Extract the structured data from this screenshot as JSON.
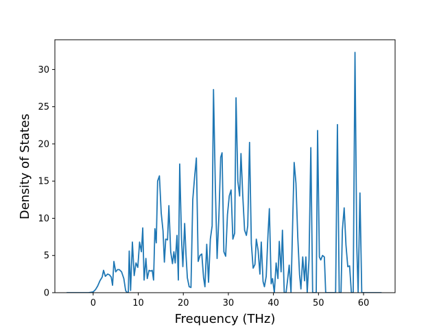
{
  "chart_data": {
    "type": "line",
    "xlabel": "Frequency (THz)",
    "ylabel": "Density of States",
    "xlim": [
      -8.5,
      67
    ],
    "ylim": [
      0,
      34
    ],
    "xticks": [
      0,
      10,
      20,
      30,
      40,
      50,
      60
    ],
    "yticks": [
      0,
      5,
      10,
      15,
      20,
      25,
      30
    ],
    "x_tick_labels": [
      "0",
      "10",
      "20",
      "30",
      "40",
      "50",
      "60"
    ],
    "y_tick_labels": [
      "0",
      "5",
      "10",
      "15",
      "20",
      "25",
      "30"
    ],
    "grid": false,
    "series": [
      {
        "color": "#1f77b4",
        "points": [
          [
            -5.9,
            0
          ],
          [
            -1.0,
            0
          ],
          [
            0,
            0.1
          ],
          [
            0.5,
            0.4
          ],
          [
            1.0,
            0.9
          ],
          [
            1.5,
            1.6
          ],
          [
            2.0,
            2.1
          ],
          [
            2.3,
            3.0
          ],
          [
            2.7,
            2.2
          ],
          [
            3.2,
            2.5
          ],
          [
            3.6,
            2.4
          ],
          [
            4.0,
            2.1
          ],
          [
            4.3,
            1.0
          ],
          [
            4.6,
            4.2
          ],
          [
            5.0,
            2.8
          ],
          [
            5.4,
            3.1
          ],
          [
            5.8,
            3.1
          ],
          [
            6.3,
            2.8
          ],
          [
            6.8,
            1.9
          ],
          [
            7.2,
            0.3
          ],
          [
            7.5,
            0
          ],
          [
            7.8,
            0.1
          ],
          [
            8.0,
            5.6
          ],
          [
            8.3,
            0.3
          ],
          [
            8.7,
            6.8
          ],
          [
            9.1,
            2.3
          ],
          [
            9.5,
            4.0
          ],
          [
            9.9,
            3.4
          ],
          [
            10.3,
            6.8
          ],
          [
            10.7,
            5.5
          ],
          [
            11.0,
            8.7
          ],
          [
            11.3,
            1.7
          ],
          [
            11.7,
            4.6
          ],
          [
            12.0,
            1.9
          ],
          [
            12.4,
            3.0
          ],
          [
            12.8,
            2.9
          ],
          [
            13.1,
            3.0
          ],
          [
            13.4,
            1.7
          ],
          [
            13.7,
            8.6
          ],
          [
            14.0,
            6.7
          ],
          [
            14.3,
            15.0
          ],
          [
            14.7,
            15.7
          ],
          [
            15.1,
            10.7
          ],
          [
            15.5,
            8.3
          ],
          [
            15.8,
            4.1
          ],
          [
            16.1,
            7.2
          ],
          [
            16.5,
            7.1
          ],
          [
            16.8,
            11.7
          ],
          [
            17.2,
            5.5
          ],
          [
            17.6,
            3.9
          ],
          [
            17.9,
            5.5
          ],
          [
            18.2,
            4.0
          ],
          [
            18.6,
            7.7
          ],
          [
            18.9,
            1.7
          ],
          [
            19.2,
            17.3
          ],
          [
            19.6,
            7.3
          ],
          [
            19.9,
            3.5
          ],
          [
            20.3,
            9.3
          ],
          [
            20.6,
            5.1
          ],
          [
            20.9,
            2.0
          ],
          [
            21.3,
            0.8
          ],
          [
            21.7,
            0.7
          ],
          [
            22.1,
            12.5
          ],
          [
            22.5,
            15.5
          ],
          [
            22.9,
            18.1
          ],
          [
            23.3,
            4.2
          ],
          [
            23.7,
            5.0
          ],
          [
            24.1,
            5.2
          ],
          [
            24.5,
            2.0
          ],
          [
            24.8,
            0.8
          ],
          [
            25.2,
            6.5
          ],
          [
            25.6,
            1.4
          ],
          [
            26.0,
            7.2
          ],
          [
            26.4,
            9.0
          ],
          [
            26.7,
            27.3
          ],
          [
            27.1,
            14.5
          ],
          [
            27.5,
            4.6
          ],
          [
            27.9,
            10.3
          ],
          [
            28.3,
            18.2
          ],
          [
            28.6,
            18.8
          ],
          [
            29.0,
            5.5
          ],
          [
            29.4,
            4.9
          ],
          [
            29.8,
            10.5
          ],
          [
            30.2,
            13.0
          ],
          [
            30.6,
            13.8
          ],
          [
            31.0,
            7.2
          ],
          [
            31.4,
            8.0
          ],
          [
            31.7,
            26.2
          ],
          [
            32.1,
            15.0
          ],
          [
            32.5,
            13.0
          ],
          [
            32.8,
            18.7
          ],
          [
            33.2,
            13.0
          ],
          [
            33.6,
            8.4
          ],
          [
            34.0,
            7.7
          ],
          [
            34.3,
            9.0
          ],
          [
            34.7,
            20.2
          ],
          [
            35.1,
            6.6
          ],
          [
            35.5,
            3.3
          ],
          [
            35.9,
            3.8
          ],
          [
            36.2,
            7.2
          ],
          [
            36.6,
            5.7
          ],
          [
            37.0,
            2.5
          ],
          [
            37.3,
            6.8
          ],
          [
            37.7,
            1.5
          ],
          [
            38.0,
            0.8
          ],
          [
            38.4,
            2.2
          ],
          [
            38.8,
            7.9
          ],
          [
            39.1,
            11.3
          ],
          [
            39.5,
            1.2
          ],
          [
            39.8,
            1.9
          ],
          [
            40.2,
            0
          ],
          [
            40.6,
            4.0
          ],
          [
            41.0,
            1.9
          ],
          [
            41.3,
            6.9
          ],
          [
            41.7,
            2.8
          ],
          [
            42.0,
            8.4
          ],
          [
            42.4,
            0
          ],
          [
            42.8,
            0
          ],
          [
            43.1,
            1.5
          ],
          [
            43.5,
            3.7
          ],
          [
            43.9,
            0
          ],
          [
            44.3,
            10.2
          ],
          [
            44.6,
            17.5
          ],
          [
            45.0,
            14.7
          ],
          [
            45.4,
            7.5
          ],
          [
            45.8,
            2.4
          ],
          [
            46.1,
            0.5
          ],
          [
            46.5,
            4.8
          ],
          [
            46.9,
            1.6
          ],
          [
            47.2,
            4.8
          ],
          [
            47.5,
            0
          ],
          [
            47.9,
            4.5
          ],
          [
            48.3,
            19.5
          ],
          [
            48.7,
            0
          ],
          [
            49.1,
            0
          ],
          [
            49.5,
            0
          ],
          [
            49.8,
            21.8
          ],
          [
            50.2,
            4.8
          ],
          [
            50.5,
            4.4
          ],
          [
            50.9,
            5.0
          ],
          [
            51.3,
            4.8
          ],
          [
            51.6,
            0
          ],
          [
            52.0,
            0
          ],
          [
            53.8,
            0
          ],
          [
            54.2,
            22.6
          ],
          [
            54.6,
            0
          ],
          [
            55.0,
            0
          ],
          [
            55.3,
            8.4
          ],
          [
            55.7,
            11.4
          ],
          [
            56.1,
            6.4
          ],
          [
            56.5,
            3.5
          ],
          [
            56.9,
            3.6
          ],
          [
            57.3,
            0
          ],
          [
            57.7,
            0
          ],
          [
            58.1,
            32.3
          ],
          [
            58.5,
            6.2
          ],
          [
            58.8,
            0
          ],
          [
            59.2,
            13.4
          ],
          [
            59.6,
            0
          ],
          [
            60.0,
            0
          ],
          [
            64.0,
            0
          ]
        ]
      }
    ]
  }
}
